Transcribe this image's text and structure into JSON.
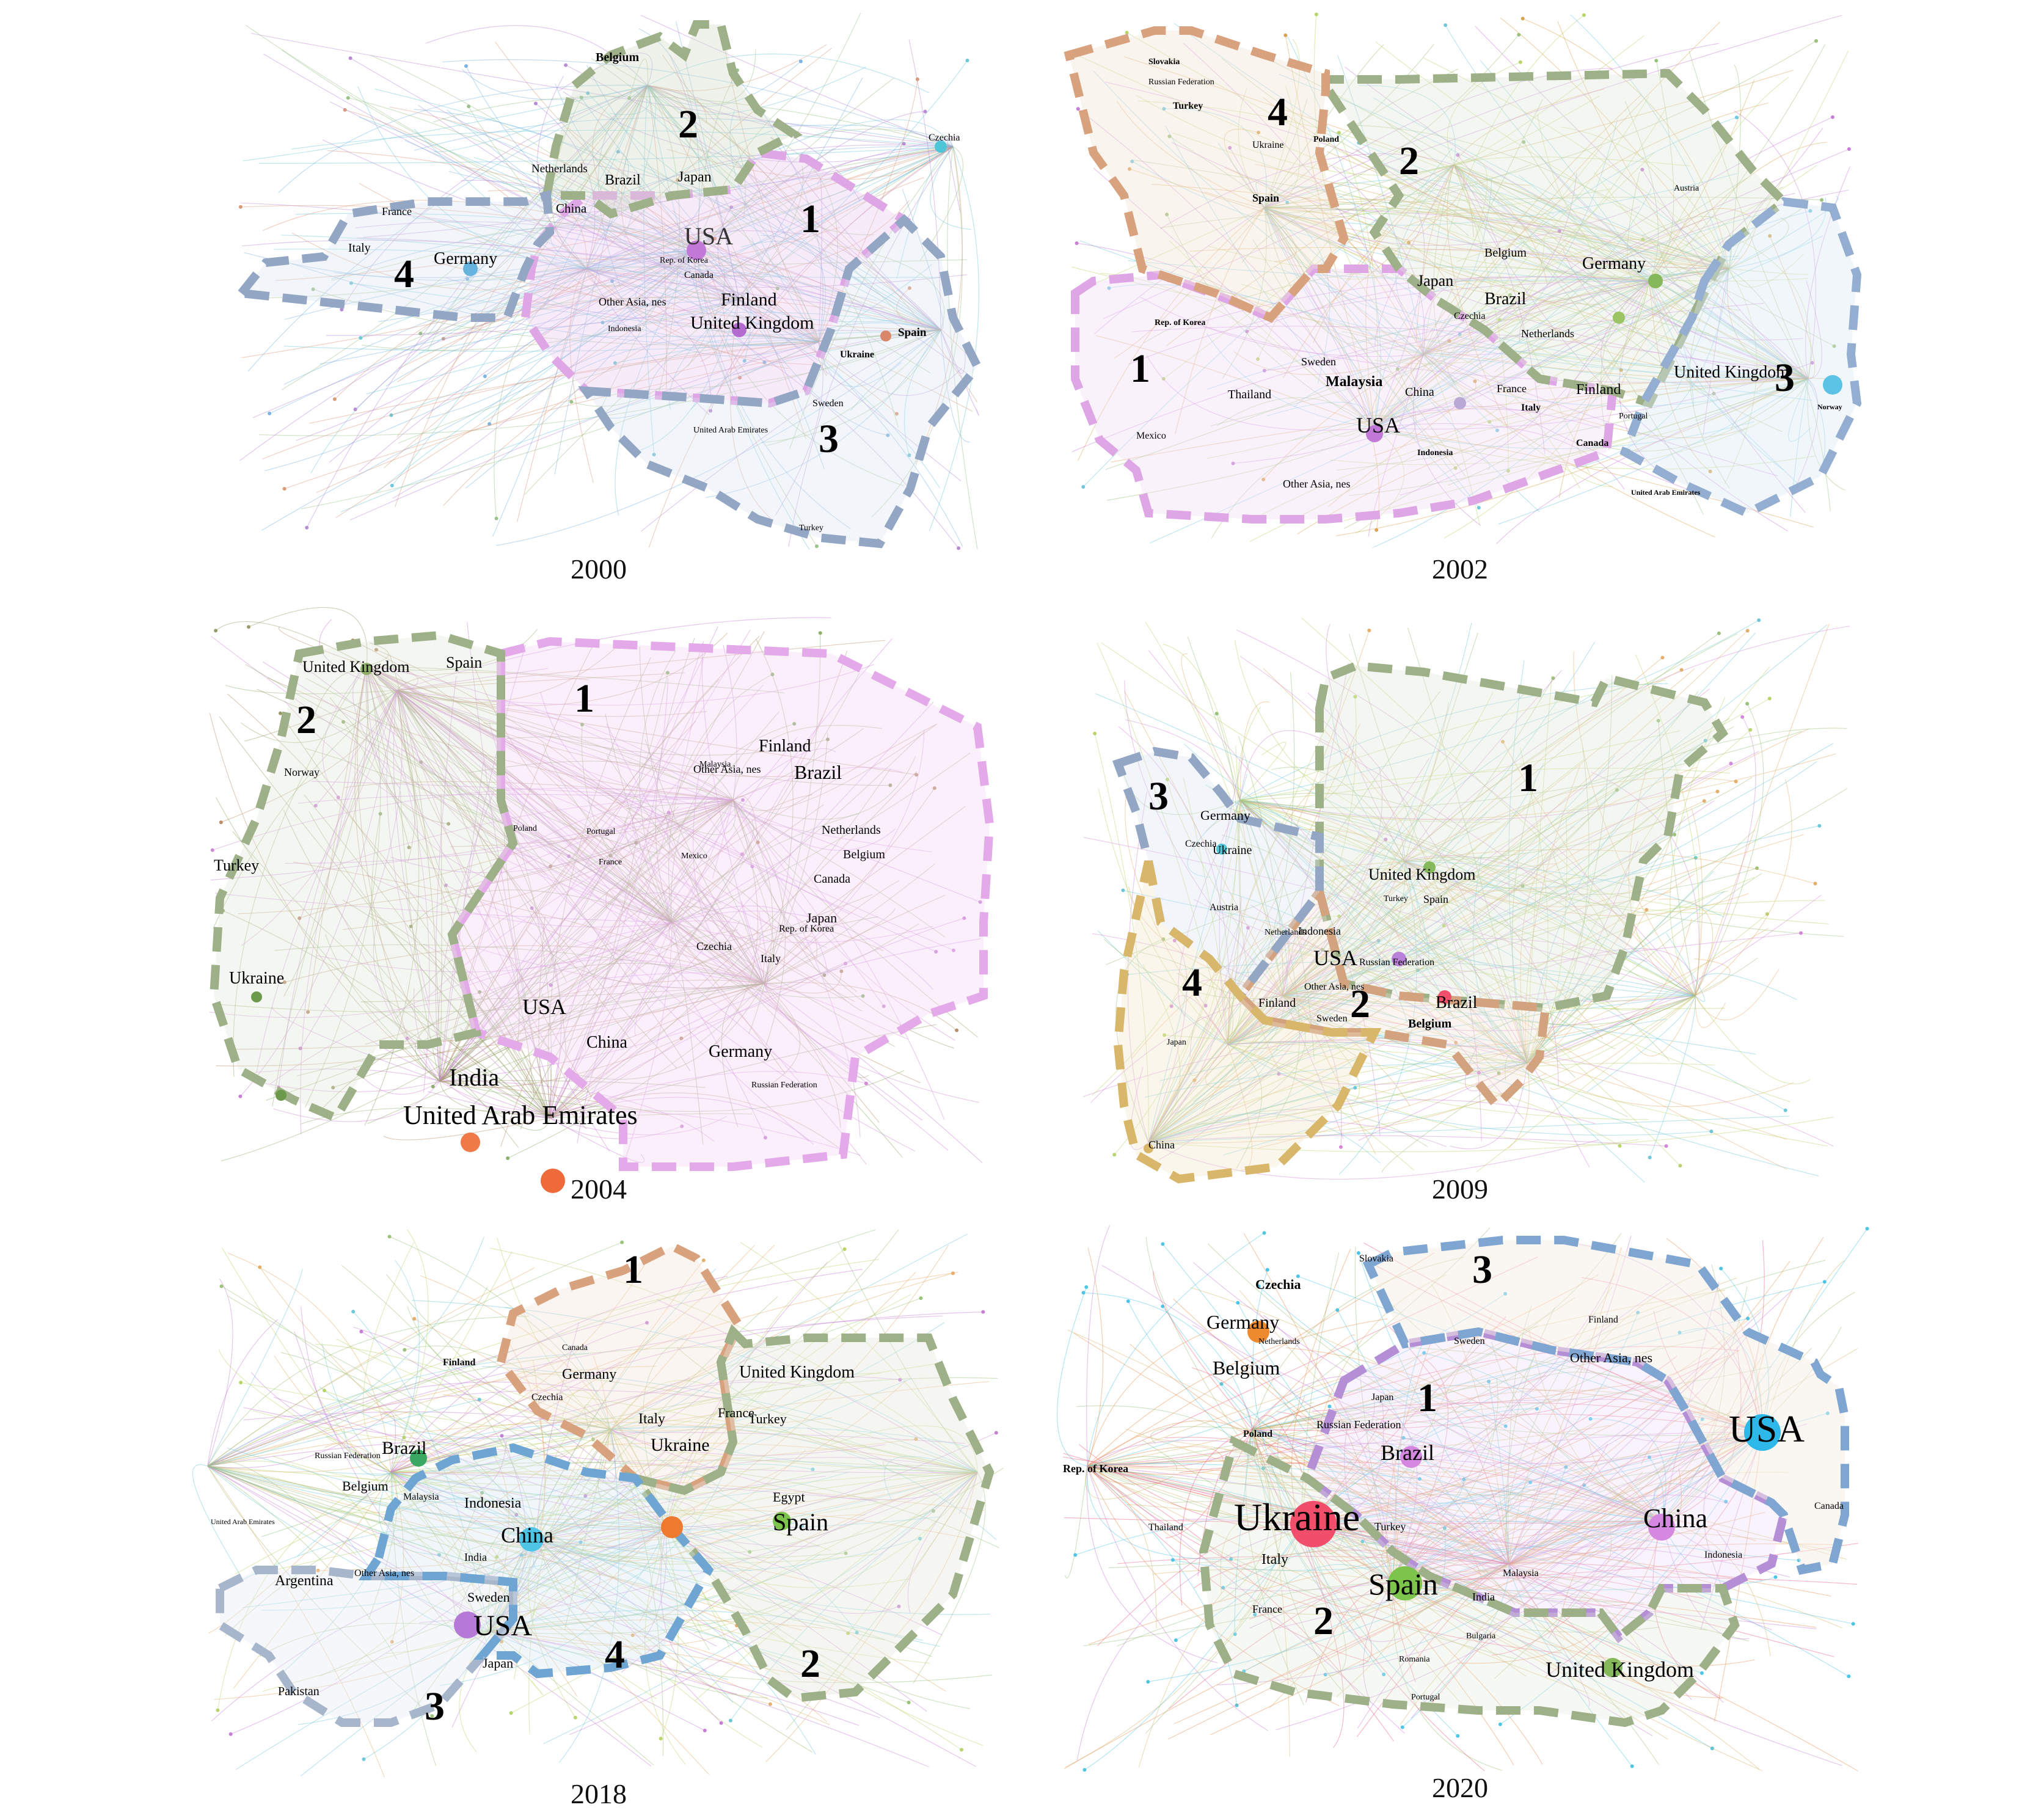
{
  "figure": {
    "panels": [
      {
        "id": "p2000",
        "year": "2000",
        "clusters": [
          {
            "number": "1",
            "color": "#dfa6e6"
          },
          {
            "number": "2",
            "color": "#9db087"
          },
          {
            "number": "3",
            "color": "#93a6c4"
          },
          {
            "number": "4",
            "color": "#93a6c4"
          }
        ],
        "countries": [
          "Belgium",
          "Netherlands",
          "Brazil",
          "Japan",
          "China",
          "France",
          "Italy",
          "Germany",
          "USA",
          "Finland",
          "Canada",
          "Other Asia, nes",
          "United Kingdom",
          "Spain",
          "Ukraine",
          "Sweden",
          "United Arab Emirates",
          "Turkey",
          "Czechia",
          "Rep. of Korea",
          "Indonesia"
        ]
      },
      {
        "id": "p2002",
        "year": "2002",
        "clusters": [
          {
            "number": "1",
            "color": "#dfa6e6"
          },
          {
            "number": "2",
            "color": "#9db087"
          },
          {
            "number": "3",
            "color": "#93aed0"
          },
          {
            "number": "4",
            "color": "#d9a27f"
          }
        ],
        "countries": [
          "Slovakia",
          "Russian Federation",
          "Turkey",
          "Ukraine",
          "Poland",
          "Spain",
          "Belgium",
          "Germany",
          "Japan",
          "Brazil",
          "Czechia",
          "Netherlands",
          "Rep. of Korea",
          "Sweden",
          "Malaysia",
          "China",
          "France",
          "Italy",
          "Thailand",
          "Mexico",
          "USA",
          "Indonesia",
          "Other Asia, nes",
          "Finland",
          "United Kingdom",
          "Portugal",
          "Canada",
          "United Arab Emirates",
          "Norway",
          "Austria"
        ]
      },
      {
        "id": "p2004",
        "year": "2004",
        "clusters": [
          {
            "number": "1",
            "color": "#e3a9e8"
          },
          {
            "number": "2",
            "color": "#9db087"
          }
        ],
        "countries": [
          "United Kingdom",
          "Spain",
          "Norway",
          "Turkey",
          "Ukraine",
          "Other Asia, nes",
          "Finland",
          "Brazil",
          "Netherlands",
          "Belgium",
          "France",
          "Mexico",
          "Canada",
          "Japan",
          "Italy",
          "Czechia",
          "Rep. of Korea",
          "USA",
          "China",
          "Germany",
          "India",
          "United Arab Emirates",
          "Russian Federation",
          "Malaysia",
          "Portugal",
          "Poland"
        ]
      },
      {
        "id": "p2009",
        "year": "2009",
        "clusters": [
          {
            "number": "1",
            "color": "#9db087"
          },
          {
            "number": "2",
            "color": "#d3a27f"
          },
          {
            "number": "3",
            "color": "#93a6c4"
          },
          {
            "number": "4",
            "color": "#d8b66a"
          }
        ],
        "countries": [
          "Germany",
          "Czechia",
          "Ukraine",
          "United Kingdom",
          "Turkey",
          "Spain",
          "Austria",
          "Indonesia",
          "USA",
          "Russian Federation",
          "Other Asia, nes",
          "Finland",
          "Sweden",
          "Brazil",
          "Belgium",
          "Japan",
          "China",
          "Netherlands"
        ]
      },
      {
        "id": "p2018",
        "year": "2018",
        "clusters": [
          {
            "number": "1",
            "color": "#d9a27f"
          },
          {
            "number": "2",
            "color": "#9db087"
          },
          {
            "number": "3",
            "color": "#a8b6cc"
          },
          {
            "number": "4",
            "color": "#6fa5d2"
          }
        ],
        "countries": [
          "Finland",
          "Canada",
          "Germany",
          "Czechia",
          "Italy",
          "Ukraine",
          "France",
          "Turkey",
          "United Kingdom",
          "Brazil",
          "Russian Federation",
          "Belgium",
          "Malaysia",
          "Indonesia",
          "China",
          "India",
          "Other Asia, nes",
          "Argentina",
          "Sweden",
          "USA",
          "Japan",
          "Pakistan",
          "Egypt",
          "Spain",
          "United Arab Emirates"
        ]
      },
      {
        "id": "p2020",
        "year": "2020",
        "clusters": [
          {
            "number": "1",
            "color": "#b48fd6"
          },
          {
            "number": "2",
            "color": "#9db087"
          },
          {
            "number": "3",
            "color": "#7fa6d0"
          }
        ],
        "countries": [
          "Czechia",
          "Germany",
          "Netherlands",
          "Belgium",
          "Poland",
          "Japan",
          "Russian Federation",
          "Brazil",
          "Ukraine",
          "Italy",
          "Turkey",
          "Spain",
          "India",
          "Malaysia",
          "France",
          "Bulgaria",
          "Romania",
          "Portugal",
          "China",
          "Indonesia",
          "United Kingdom",
          "USA",
          "Canada",
          "Sweden",
          "Finland",
          "Other Asia, nes",
          "Rep. of Korea",
          "Slovakia",
          "Thailand"
        ]
      }
    ]
  }
}
